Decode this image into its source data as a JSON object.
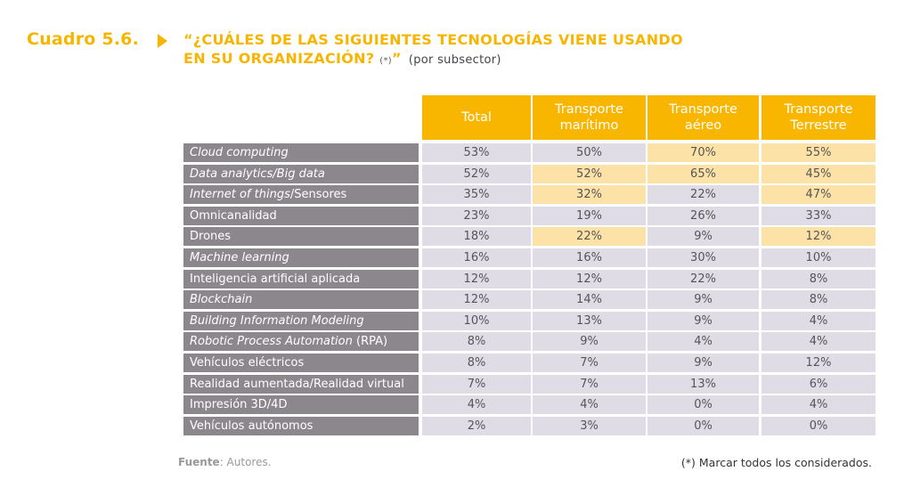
{
  "title": {
    "cuadro": "Cuadro 5.6.",
    "arrow_icon": "triangle-right-icon",
    "question_line1": "“¿CUÁLES DE LAS SIGUIENTES TECNOLOGÍAS VIENE USANDO",
    "question_line2": "EN SU ORGANIZACIÓN?",
    "asterisk": "(*)",
    "close_quote": "”",
    "subtitle": "(por subsector)"
  },
  "colors": {
    "accent": "#f9b600",
    "label_bg": "#8c878c",
    "cell_bg": "#e0dce6",
    "highlight_bg": "#fde2a8"
  },
  "table": {
    "columns": [
      "Total",
      "Transporte marítimo",
      "Transporte aéreo",
      "Transporte Terrestre"
    ],
    "column_lines": [
      [
        "Total"
      ],
      [
        "Transporte",
        "marítimo"
      ],
      [
        "Transporte",
        "aéreo"
      ],
      [
        "Transporte",
        "Terrestre"
      ]
    ],
    "rows": [
      {
        "label": "Cloud computing",
        "italic": "all",
        "values": [
          "53%",
          "50%",
          "70%",
          "55%"
        ],
        "highlight": [
          false,
          false,
          true,
          true
        ]
      },
      {
        "label": "Data analytics/Big data",
        "italic": "all",
        "values": [
          "52%",
          "52%",
          "65%",
          "45%"
        ],
        "highlight": [
          false,
          true,
          true,
          true
        ]
      },
      {
        "label_italic": "Internet of things",
        "label_rest": "/Sensores",
        "label": "Internet of things/Sensores",
        "italic": "partial",
        "values": [
          "35%",
          "32%",
          "22%",
          "47%"
        ],
        "highlight": [
          false,
          true,
          false,
          true
        ]
      },
      {
        "label": "Omnicanalidad",
        "italic": "none",
        "values": [
          "23%",
          "19%",
          "26%",
          "33%"
        ],
        "highlight": [
          false,
          false,
          false,
          false
        ]
      },
      {
        "label": "Drones",
        "italic": "none",
        "values": [
          "18%",
          "22%",
          "9%",
          "12%"
        ],
        "highlight": [
          false,
          true,
          false,
          true
        ]
      },
      {
        "label": "Machine learning",
        "italic": "all",
        "values": [
          "16%",
          "16%",
          "30%",
          "10%"
        ],
        "highlight": [
          false,
          false,
          false,
          false
        ]
      },
      {
        "label": "Inteligencia artificial aplicada",
        "italic": "none",
        "values": [
          "12%",
          "12%",
          "22%",
          "8%"
        ],
        "highlight": [
          false,
          false,
          false,
          false
        ]
      },
      {
        "label": "Blockchain",
        "italic": "all",
        "values": [
          "12%",
          "14%",
          "9%",
          "8%"
        ],
        "highlight": [
          false,
          false,
          false,
          false
        ]
      },
      {
        "label": "Building Information Modeling",
        "italic": "all",
        "values": [
          "10%",
          "13%",
          "9%",
          "4%"
        ],
        "highlight": [
          false,
          false,
          false,
          false
        ]
      },
      {
        "label_italic": "Robotic Process Automation",
        "label_rest": " (RPA)",
        "label": "Robotic Process Automation (RPA)",
        "italic": "partial",
        "values": [
          "8%",
          "9%",
          "4%",
          "4%"
        ],
        "highlight": [
          false,
          false,
          false,
          false
        ]
      },
      {
        "label": "Vehículos eléctricos",
        "italic": "none",
        "values": [
          "8%",
          "7%",
          "9%",
          "12%"
        ],
        "highlight": [
          false,
          false,
          false,
          false
        ]
      },
      {
        "label": "Realidad aumentada/Realidad virtual",
        "italic": "none",
        "values": [
          "7%",
          "7%",
          "13%",
          "6%"
        ],
        "highlight": [
          false,
          false,
          false,
          false
        ]
      },
      {
        "label": "Impresión 3D/4D",
        "italic": "none",
        "values": [
          "4%",
          "4%",
          "0%",
          "4%"
        ],
        "highlight": [
          false,
          false,
          false,
          false
        ]
      },
      {
        "label": "Vehículos autónomos",
        "italic": "none",
        "values": [
          "2%",
          "3%",
          "0%",
          "0%"
        ],
        "highlight": [
          false,
          false,
          false,
          false
        ]
      }
    ]
  },
  "footer": {
    "source_label": "Fuente",
    "source_text": ": Autores.",
    "note": "(*) Marcar todos los considerados."
  }
}
